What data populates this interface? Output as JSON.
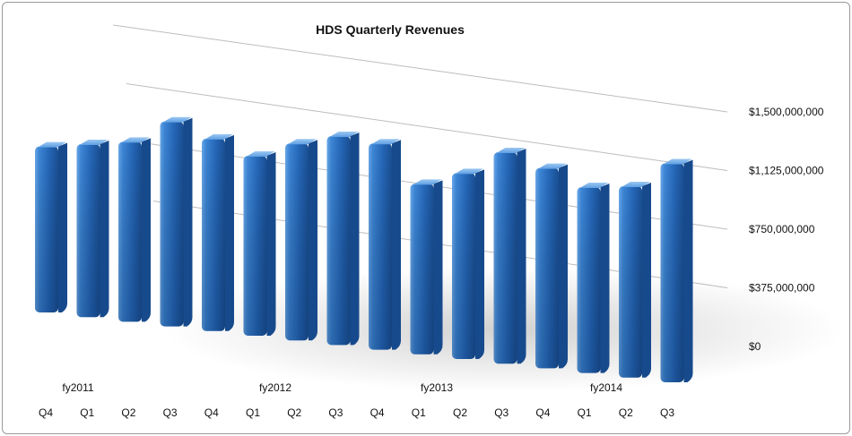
{
  "chart_data": {
    "type": "bar",
    "title": "HDS Quarterly Revenues",
    "categories": [
      "Q4",
      "Q1",
      "Q2",
      "Q3",
      "Q4",
      "Q1",
      "Q2",
      "Q3",
      "Q4",
      "Q1",
      "Q2",
      "Q3",
      "Q4",
      "Q1",
      "Q2",
      "Q3"
    ],
    "groups": [
      {
        "label": "fy2011"
      },
      {
        "label": "fy2012"
      },
      {
        "label": "fy2013"
      },
      {
        "label": "fy2014"
      }
    ],
    "values": [
      1030000000,
      1070000000,
      1110000000,
      1260000000,
      1180000000,
      1100000000,
      1200000000,
      1270000000,
      1250000000,
      1030000000,
      1120000000,
      1270000000,
      1200000000,
      1110000000,
      1140000000,
      1300000000
    ],
    "y_ticks": [
      {
        "value": 0,
        "label": "$0"
      },
      {
        "value": 375000000,
        "label": "$375,000,000"
      },
      {
        "value": 750000000,
        "label": "$750,000,000"
      },
      {
        "value": 1125000000,
        "label": "$1,125,000,000"
      },
      {
        "value": 1500000000,
        "label": "$1,500,000,000"
      }
    ],
    "ylim": [
      0,
      1500000000
    ],
    "grid": true,
    "bar_color": "#2b74c8"
  }
}
